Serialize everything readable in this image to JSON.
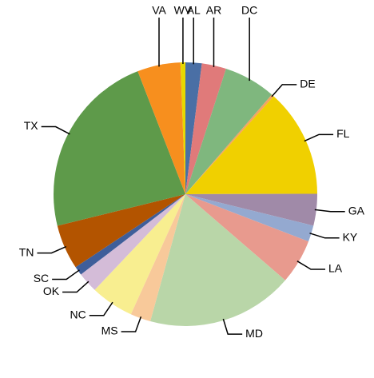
{
  "chart_data": {
    "type": "pie",
    "categories": [
      "AL",
      "AR",
      "DC",
      "DE",
      "FL",
      "GA",
      "KY",
      "LA",
      "MD",
      "MS",
      "NC",
      "OK",
      "SC",
      "TN",
      "TX",
      "VA",
      "WV"
    ],
    "values": [
      2,
      3,
      6.4,
      0.3,
      13.3,
      3.9,
      2,
      5.5,
      18,
      2.5,
      5.3,
      2.5,
      1.1,
      5.5,
      23,
      5.3,
      0.6
    ],
    "colors": [
      "#4a6fa5",
      "#e07a7a",
      "#7fb77e",
      "#f4a460",
      "#f0d000",
      "#a08aa8",
      "#94a9d0",
      "#e89a8e",
      "#b9d6a8",
      "#f8c99a",
      "#f8ee90",
      "#d4bcd8",
      "#3f5e9a",
      "#b35400",
      "#5e9a4a",
      "#f78f1e",
      "#e8d800"
    ]
  }
}
